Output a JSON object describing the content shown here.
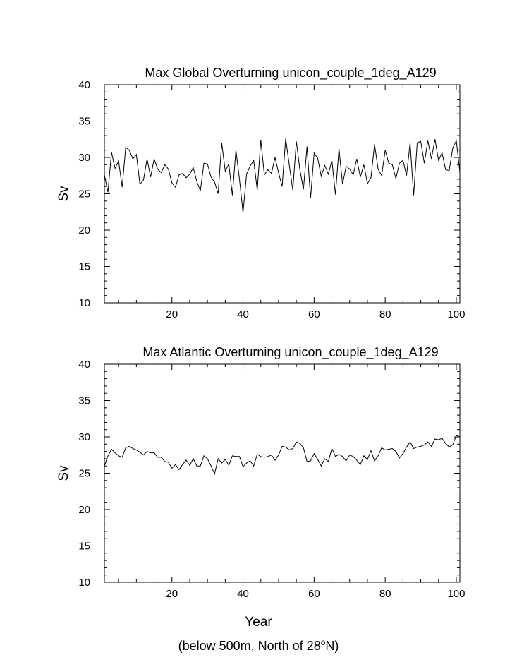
{
  "chart_data": [
    {
      "type": "line",
      "title": "Max Global Overturning unicon_couple_1deg_A129",
      "ylabel": "Sv",
      "xlim": [
        1,
        101
      ],
      "ylim": [
        10,
        40
      ],
      "xticks": [
        20,
        40,
        60,
        80,
        100
      ],
      "yticks": [
        10,
        15,
        20,
        25,
        30,
        35,
        40
      ],
      "series": [
        {
          "x": [
            1,
            2,
            3,
            4,
            5,
            6,
            7,
            8,
            9,
            10,
            11,
            12,
            13,
            14,
            15,
            16,
            17,
            18,
            19,
            20,
            21,
            22,
            23,
            24,
            25,
            26,
            27,
            28,
            29,
            30,
            31,
            32,
            33,
            34,
            35,
            36,
            37,
            38,
            39,
            40,
            41,
            42,
            43,
            44,
            45,
            46,
            47,
            48,
            49,
            50,
            51,
            52,
            53,
            54,
            55,
            56,
            57,
            58,
            59,
            60,
            61,
            62,
            63,
            64,
            65,
            66,
            67,
            68,
            69,
            70,
            71,
            72,
            73,
            74,
            75,
            76,
            77,
            78,
            79,
            80,
            81,
            82,
            83,
            84,
            85,
            86,
            87,
            88,
            89,
            90,
            91,
            92,
            93,
            94,
            95,
            96,
            97,
            98,
            99,
            100,
            101
          ],
          "y": [
            27.6,
            25.2,
            30.7,
            28.5,
            29.5,
            25.9,
            31.4,
            31.0,
            29.8,
            30.4,
            26.3,
            26.9,
            29.8,
            27.3,
            29.8,
            28.4,
            27.9,
            29.0,
            28.4,
            26.5,
            25.9,
            27.6,
            27.8,
            27.2,
            27.7,
            28.6,
            26.7,
            25.4,
            29.2,
            29.1,
            27.3,
            26.6,
            25.0,
            32.0,
            28.1,
            29.1,
            24.8,
            31.0,
            27.0,
            22.4,
            27.7,
            28.8,
            29.6,
            25.5,
            32.4,
            27.6,
            28.3,
            27.8,
            30.0,
            27.9,
            26.0,
            32.6,
            29.0,
            25.5,
            32.2,
            28.3,
            25.6,
            31.5,
            24.4,
            30.6,
            29.9,
            27.4,
            28.9,
            27.7,
            29.6,
            24.9,
            31.2,
            26.3,
            28.8,
            28.4,
            27.6,
            29.8,
            27.3,
            29.0,
            26.4,
            27.2,
            31.8,
            28.4,
            27.5,
            31.0,
            29.2,
            29.0,
            27.1,
            29.2,
            29.6,
            27.5,
            32.0,
            24.8,
            32.0,
            32.2,
            29.2,
            32.3,
            29.8,
            32.5,
            29.6,
            30.6,
            28.3,
            28.2,
            31.3,
            32.3,
            28.0
          ]
        }
      ]
    },
    {
      "type": "line",
      "title": "Max Atlantic Overturning unicon_couple_1deg_A129",
      "ylabel": "Sv",
      "xlim": [
        1,
        101
      ],
      "ylim": [
        10,
        40
      ],
      "xticks": [
        20,
        40,
        60,
        80,
        100
      ],
      "yticks": [
        10,
        15,
        20,
        25,
        30,
        35,
        40
      ],
      "series": [
        {
          "x": [
            1,
            2,
            3,
            4,
            5,
            6,
            7,
            8,
            9,
            10,
            11,
            12,
            13,
            14,
            15,
            16,
            17,
            18,
            19,
            20,
            21,
            22,
            23,
            24,
            25,
            26,
            27,
            28,
            29,
            30,
            31,
            32,
            33,
            34,
            35,
            36,
            37,
            38,
            39,
            40,
            41,
            42,
            43,
            44,
            45,
            46,
            47,
            48,
            49,
            50,
            51,
            52,
            53,
            54,
            55,
            56,
            57,
            58,
            59,
            60,
            61,
            62,
            63,
            64,
            65,
            66,
            67,
            68,
            69,
            70,
            71,
            72,
            73,
            74,
            75,
            76,
            77,
            78,
            79,
            80,
            81,
            82,
            83,
            84,
            85,
            86,
            87,
            88,
            89,
            90,
            91,
            92,
            93,
            94,
            95,
            96,
            97,
            98,
            99,
            100,
            101
          ],
          "y": [
            26.0,
            27.4,
            28.3,
            27.8,
            27.4,
            27.2,
            28.5,
            28.7,
            28.4,
            28.2,
            27.9,
            27.5,
            28.0,
            27.8,
            27.8,
            27.2,
            27.2,
            26.6,
            26.5,
            25.7,
            26.2,
            25.5,
            26.2,
            26.8,
            26.1,
            27.0,
            26.0,
            26.0,
            27.4,
            27.0,
            26.0,
            24.9,
            27.0,
            26.4,
            26.9,
            26.1,
            27.4,
            27.3,
            27.3,
            25.9,
            26.4,
            26.7,
            26.0,
            27.6,
            27.3,
            27.2,
            27.3,
            27.5,
            26.8,
            27.5,
            28.7,
            28.6,
            28.2,
            28.4,
            29.3,
            29.1,
            28.5,
            26.6,
            26.7,
            27.7,
            26.9,
            26.0,
            27.0,
            26.6,
            28.4,
            27.3,
            27.6,
            27.3,
            26.7,
            27.5,
            27.3,
            26.8,
            26.2,
            27.4,
            26.9,
            28.1,
            26.7,
            27.4,
            28.5,
            28.2,
            28.3,
            28.4,
            28.0,
            27.1,
            27.7,
            28.6,
            29.3,
            28.4,
            28.6,
            28.7,
            28.9,
            29.3,
            28.7,
            29.7,
            29.6,
            29.8,
            29.1,
            28.6,
            28.9,
            30.2,
            30.0
          ]
        }
      ]
    }
  ],
  "figure": {
    "xlabel": "Year",
    "footnote_prefix": "(below 500m, North of 28",
    "footnote_sup": "o",
    "footnote_suffix": "N)"
  }
}
